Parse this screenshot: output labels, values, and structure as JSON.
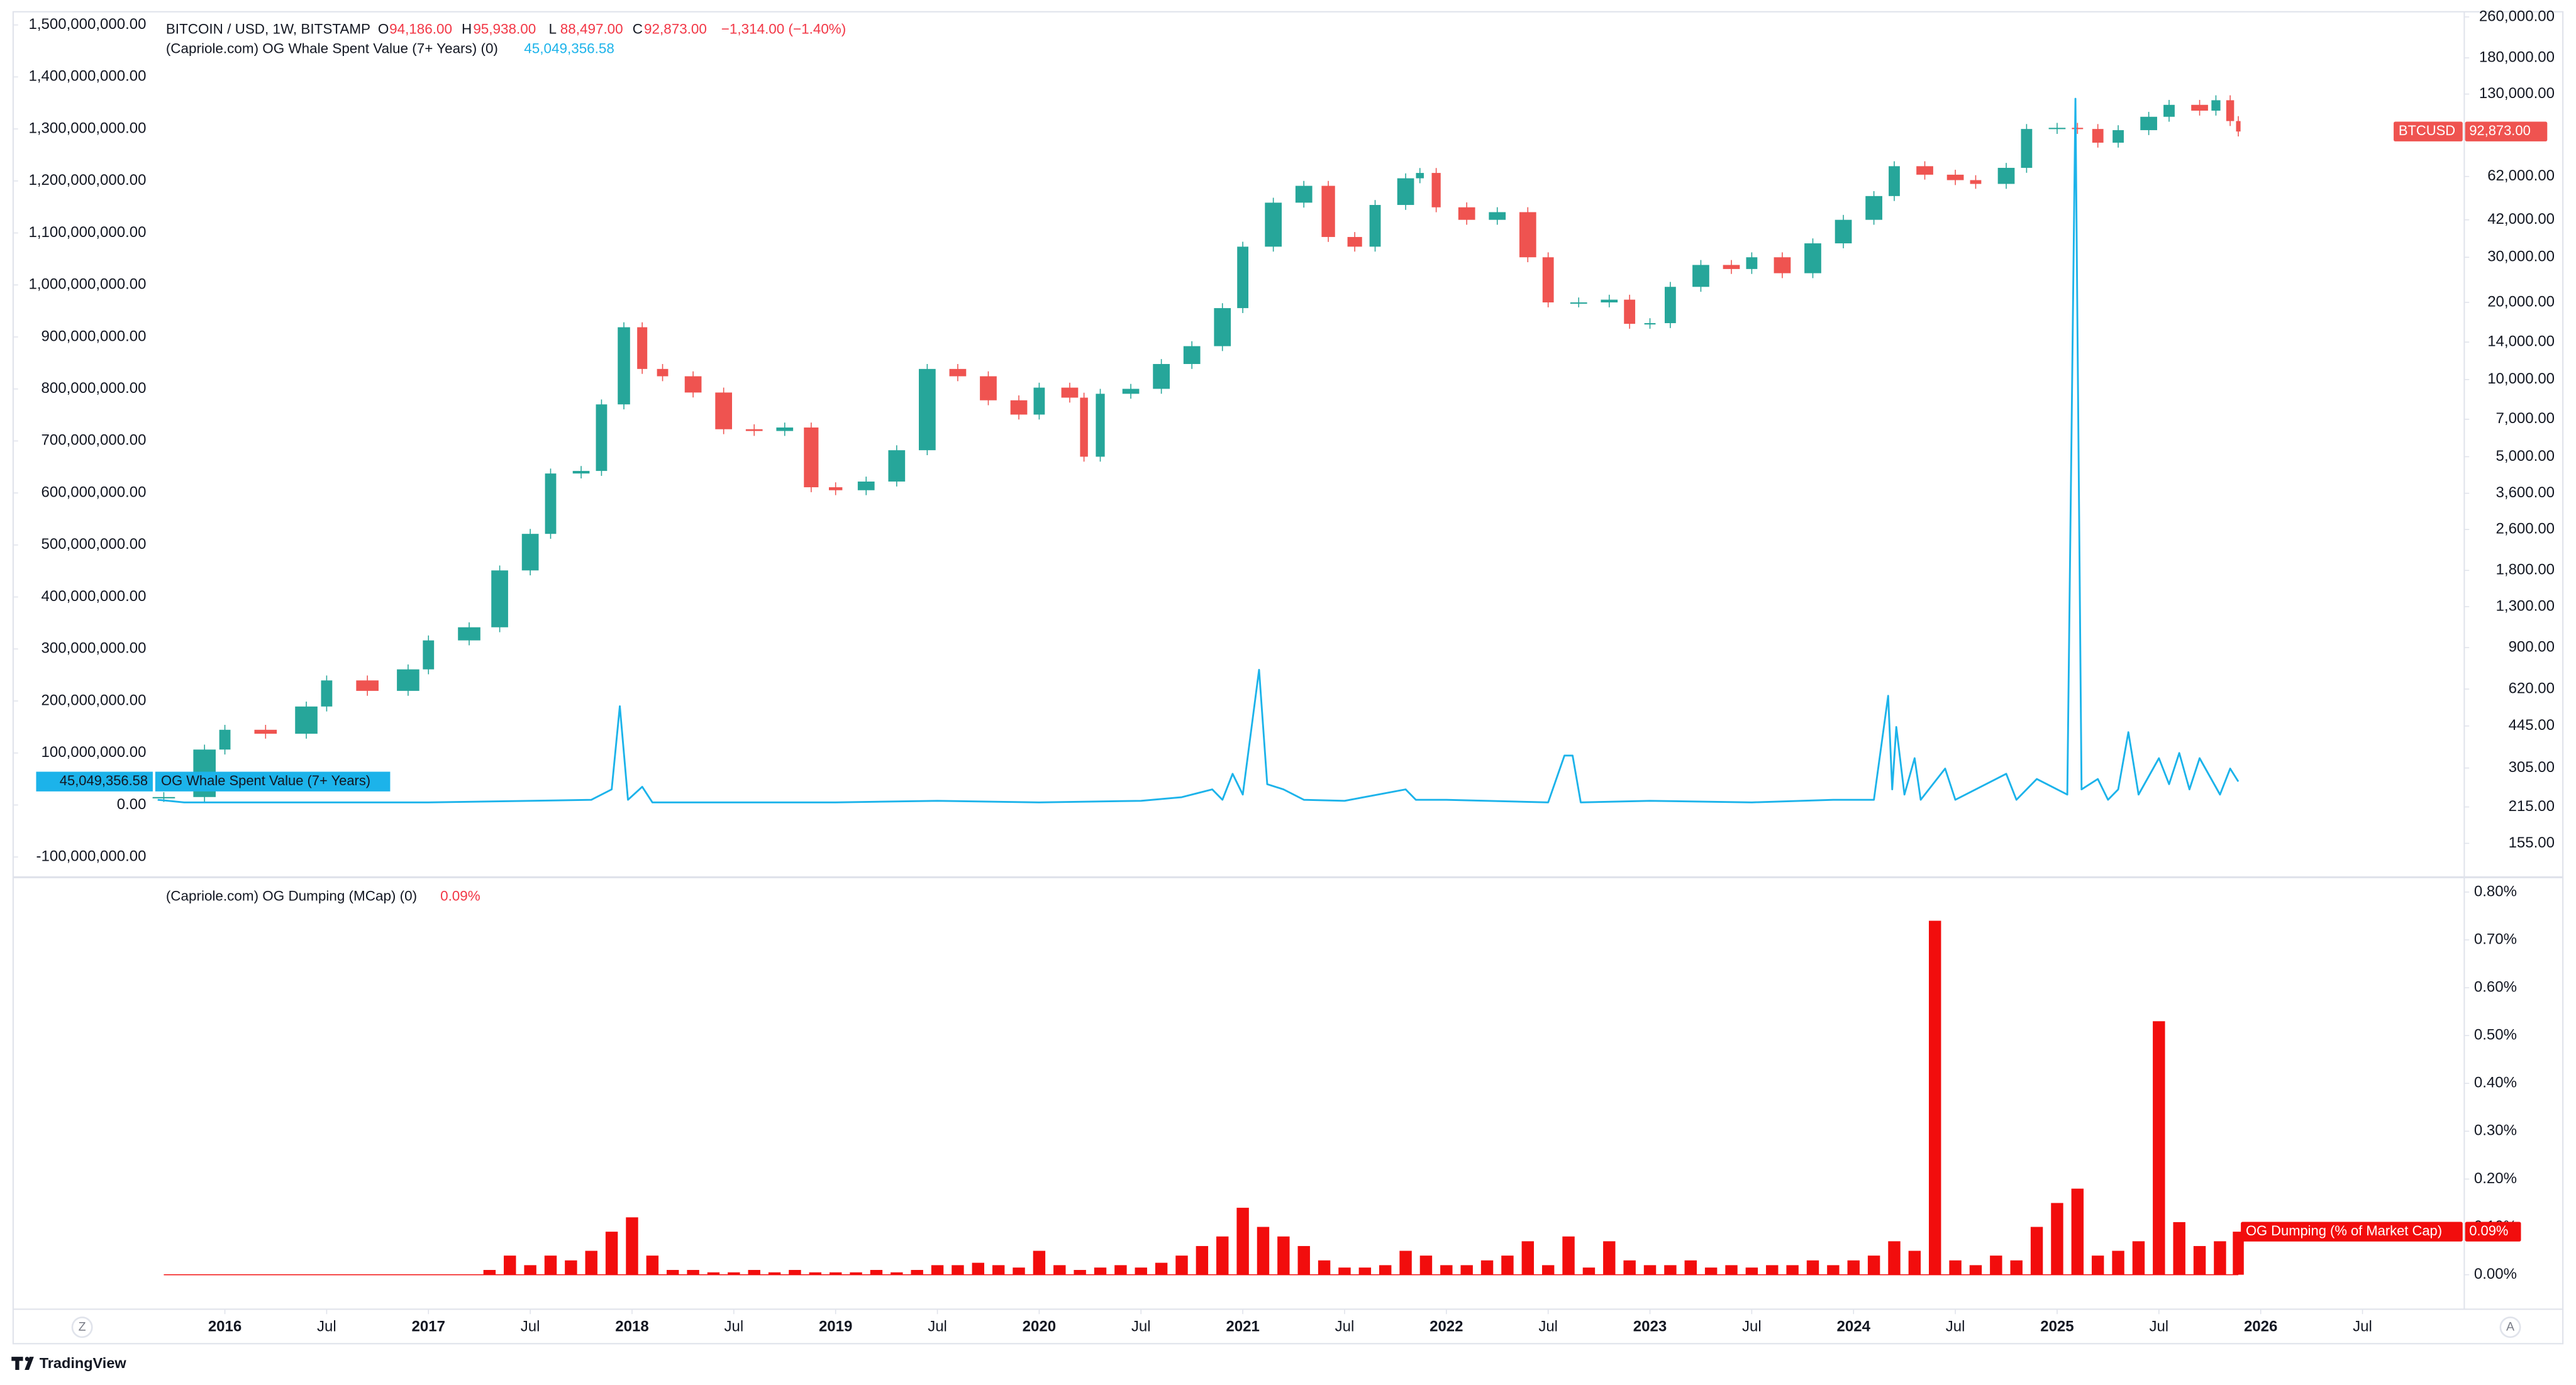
{
  "chart_data": [
    {
      "type": "candlestick",
      "title": "BITCOIN / USD, 1W, BITSTAMP",
      "ohlc": [
        [
          "O",
          "94,186.00"
        ],
        [
          "H",
          "95,938.00"
        ],
        [
          "L",
          "88,497.00"
        ],
        [
          "C",
          "92,873.00"
        ]
      ],
      "change": "−1,314.00 (−1.40%)",
      "xlim": [
        2014.96,
        2027.0
      ],
      "ylim": [
        -135800000,
        1525300000
      ],
      "yticks": [
        {
          "value": 1500000000,
          "label": "1,500,000,000.00"
        },
        {
          "value": 1400000000,
          "label": "1,400,000,000.00"
        },
        {
          "value": 1300000000,
          "label": "1,300,000,000.00"
        },
        {
          "value": 1200000000,
          "label": "1,200,000,000.00"
        },
        {
          "value": 1100000000,
          "label": "1,100,000,000.00"
        },
        {
          "value": 1000000000,
          "label": "1,000,000,000.00"
        },
        {
          "value": 900000000,
          "label": "900,000,000.00"
        },
        {
          "value": 800000000,
          "label": "800,000,000.00"
        },
        {
          "value": 700000000,
          "label": "700,000,000.00"
        },
        {
          "value": 600000000,
          "label": "600,000,000.00"
        },
        {
          "value": 500000000,
          "label": "500,000,000.00"
        },
        {
          "value": 400000000,
          "label": "400,000,000.00"
        },
        {
          "value": 300000000,
          "label": "300,000,000.00"
        },
        {
          "value": 200000000,
          "label": "200,000,000.00"
        },
        {
          "value": 100000000,
          "label": "100,000,000.00"
        },
        {
          "value": 0,
          "label": "0.00"
        },
        {
          "value": -100000000,
          "label": "-100,000,000.00"
        }
      ],
      "y2lim": [
        116,
        272300
      ],
      "y2scale": "log",
      "y2ticks": [
        {
          "value": 260000,
          "label": "260,000.00"
        },
        {
          "value": 180000,
          "label": "180,000.00"
        },
        {
          "value": 130000,
          "label": "130,000.00"
        },
        {
          "value": 62000,
          "label": "62,000.00"
        },
        {
          "value": 42000,
          "label": "42,000.00"
        },
        {
          "value": 30000,
          "label": "30,000.00"
        },
        {
          "value": 20000,
          "label": "20,000.00"
        },
        {
          "value": 14000,
          "label": "14,000.00"
        },
        {
          "value": 10000,
          "label": "10,000.00"
        },
        {
          "value": 7000,
          "label": "7,000.00"
        },
        {
          "value": 5000,
          "label": "5,000.00"
        },
        {
          "value": 3600,
          "label": "3,600.00"
        },
        {
          "value": 2600,
          "label": "2,600.00"
        },
        {
          "value": 1800,
          "label": "1,800.00"
        },
        {
          "value": 1300,
          "label": "1,300.00"
        },
        {
          "value": 900,
          "label": "900.00"
        },
        {
          "value": 620,
          "label": "620.00"
        },
        {
          "value": 445,
          "label": "445.00"
        },
        {
          "value": 305,
          "label": "305.00"
        },
        {
          "value": 215,
          "label": "215.00"
        },
        {
          "value": 155,
          "label": "155.00"
        }
      ],
      "grid": false,
      "series": [
        {
          "name": "BTCUSD",
          "axis": "y2",
          "up_color": "#26a69a",
          "down_color": "#ef5350",
          "last_label": "92,873.00",
          "x": [
            2015.7,
            2015.9,
            2016.0,
            2016.2,
            2016.4,
            2016.5,
            2016.7,
            2016.9,
            2017.0,
            2017.2,
            2017.35,
            2017.5,
            2017.6,
            2017.75,
            2017.85,
            2017.96,
            2018.05,
            2018.15,
            2018.3,
            2018.45,
            2018.6,
            2018.75,
            2018.88,
            2019.0,
            2019.15,
            2019.3,
            2019.45,
            2019.6,
            2019.75,
            2019.9,
            2020.0,
            2020.15,
            2020.22,
            2020.3,
            2020.45,
            2020.6,
            2020.75,
            2020.9,
            2021.0,
            2021.15,
            2021.3,
            2021.42,
            2021.55,
            2021.65,
            2021.8,
            2021.87,
            2021.95,
            2022.1,
            2022.25,
            2022.4,
            2022.5,
            2022.65,
            2022.8,
            2022.9,
            2023.0,
            2023.1,
            2023.25,
            2023.4,
            2023.5,
            2023.65,
            2023.8,
            2023.95,
            2024.1,
            2024.2,
            2024.35,
            2024.5,
            2024.6,
            2024.75,
            2024.85,
            2025.0,
            2025.1,
            2025.2,
            2025.3,
            2025.45,
            2025.55,
            2025.7,
            2025.78,
            2025.85,
            2025.89
          ],
          "values": [
            235,
            360,
            430,
            415,
            530,
            670,
            610,
            740,
            960,
            1080,
            1800,
            2500,
            4300,
            4400,
            8000,
            16000,
            11000,
            10300,
            8900,
            6400,
            6300,
            6500,
            3800,
            3700,
            4000,
            5300,
            11000,
            10300,
            8300,
            7300,
            9300,
            8500,
            5000,
            8800,
            9200,
            11500,
            13500,
            19000,
            33000,
            49000,
            57000,
            36000,
            33000,
            48000,
            61000,
            64000,
            47000,
            42000,
            45000,
            30000,
            20000,
            20000,
            20500,
            16500,
            16600,
            23000,
            28000,
            27000,
            30000,
            26000,
            34000,
            42000,
            52000,
            68000,
            63000,
            60000,
            58000,
            67000,
            95000,
            96000,
            95000,
            84000,
            94000,
            106000,
            118000,
            112000,
            123000,
            102000,
            92873
          ]
        },
        {
          "name": "OG Whale Spent Value (7+ Years)",
          "type": "line",
          "color": "#1cb3ea",
          "legend_title": "(Capriole.com) OG Whale Spent Value (7+ Years) (0)",
          "last_label": "45,049,356.58",
          "x": [
            2015.67,
            2015.8,
            2016.0,
            2016.5,
            2017.0,
            2017.5,
            2017.8,
            2017.9,
            2017.94,
            2017.98,
            2018.05,
            2018.1,
            2018.5,
            2019.0,
            2019.5,
            2020.0,
            2020.5,
            2020.7,
            2020.85,
            2020.9,
            2020.95,
            2021.0,
            2021.08,
            2021.12,
            2021.2,
            2021.3,
            2021.5,
            2021.8,
            2021.85,
            2022.0,
            2022.5,
            2022.58,
            2022.62,
            2022.66,
            2023.0,
            2023.5,
            2023.9,
            2024.1,
            2024.17,
            2024.19,
            2024.21,
            2024.25,
            2024.3,
            2024.33,
            2024.45,
            2024.5,
            2024.75,
            2024.8,
            2024.9,
            2024.95,
            2025.05,
            2025.09,
            2025.12,
            2025.2,
            2025.25,
            2025.3,
            2025.35,
            2025.4,
            2025.5,
            2025.55,
            2025.6,
            2025.65,
            2025.7,
            2025.8,
            2025.85,
            2025.89
          ],
          "values": [
            10000000,
            5000000,
            5000000,
            5000000,
            5000000,
            8000000,
            10000000,
            30000000,
            190000000,
            10000000,
            35000000,
            5000000,
            5000000,
            5000000,
            8000000,
            5000000,
            8000000,
            15000000,
            30000000,
            10000000,
            60000000,
            20000000,
            260000000,
            40000000,
            30000000,
            10000000,
            8000000,
            30000000,
            10000000,
            10000000,
            5000000,
            95000000,
            95000000,
            5000000,
            8000000,
            5000000,
            10000000,
            10000000,
            210000000,
            30000000,
            150000000,
            20000000,
            90000000,
            10000000,
            70000000,
            10000000,
            60000000,
            10000000,
            50000000,
            40000000,
            20000000,
            1358000000,
            30000000,
            50000000,
            10000000,
            30000000,
            140000000,
            20000000,
            90000000,
            40000000,
            100000000,
            30000000,
            90000000,
            20000000,
            70000000,
            45049356.58
          ]
        }
      ]
    },
    {
      "type": "bar",
      "title": "(Capriole.com) OG Dumping (MCap) (0)",
      "xlim": [
        2014.96,
        2027.0
      ],
      "xticks": [
        2016,
        {
          "value": 2016.5,
          "label": "Jul"
        },
        2017,
        {
          "value": 2017.5,
          "label": "Jul"
        },
        2018,
        {
          "value": 2018.5,
          "label": "Jul"
        },
        2019,
        {
          "value": 2019.5,
          "label": "Jul"
        },
        2020,
        {
          "value": 2020.5,
          "label": "Jul"
        },
        2021,
        {
          "value": 2021.5,
          "label": "Jul"
        },
        2022,
        {
          "value": 2022.5,
          "label": "Jul"
        },
        2023,
        {
          "value": 2023.5,
          "label": "Jul"
        },
        2024,
        {
          "value": 2024.5,
          "label": "Jul"
        },
        2025,
        {
          "value": 2025.5,
          "label": "Jul"
        },
        2026,
        {
          "value": 2026.5,
          "label": "Jul"
        }
      ],
      "ylim": [
        -0.072,
        0.8275
      ],
      "yticks": [
        {
          "value": 0.8,
          "label": "0.80%"
        },
        {
          "value": 0.7,
          "label": "0.70%"
        },
        {
          "value": 0.6,
          "label": "0.60%"
        },
        {
          "value": 0.5,
          "label": "0.50%"
        },
        {
          "value": 0.4,
          "label": "0.40%"
        },
        {
          "value": 0.3,
          "label": "0.30%"
        },
        {
          "value": 0.2,
          "label": "0.20%"
        },
        {
          "value": 0.1,
          "label": "0.10%"
        },
        {
          "value": 0,
          "label": "0.00%"
        }
      ],
      "grid": false,
      "series": [
        {
          "name": "OG Dumping (% of Market Cap)",
          "color": "#f20d0d",
          "last_label": "0.09%",
          "x": [
            2015.7,
            2015.8,
            2015.9,
            2016.0,
            2016.1,
            2016.2,
            2016.3,
            2016.4,
            2016.5,
            2016.6,
            2016.7,
            2016.8,
            2016.9,
            2017.0,
            2017.1,
            2017.2,
            2017.3,
            2017.4,
            2017.5,
            2017.6,
            2017.7,
            2017.8,
            2017.9,
            2018.0,
            2018.1,
            2018.2,
            2018.3,
            2018.4,
            2018.5,
            2018.6,
            2018.7,
            2018.8,
            2018.9,
            2019.0,
            2019.1,
            2019.2,
            2019.3,
            2019.4,
            2019.5,
            2019.6,
            2019.7,
            2019.8,
            2019.9,
            2020.0,
            2020.1,
            2020.2,
            2020.3,
            2020.4,
            2020.5,
            2020.6,
            2020.7,
            2020.8,
            2020.9,
            2021.0,
            2021.1,
            2021.2,
            2021.3,
            2021.4,
            2021.5,
            2021.6,
            2021.7,
            2021.8,
            2021.9,
            2022.0,
            2022.1,
            2022.2,
            2022.3,
            2022.4,
            2022.5,
            2022.6,
            2022.7,
            2022.8,
            2022.9,
            2023.0,
            2023.1,
            2023.2,
            2023.3,
            2023.4,
            2023.5,
            2023.6,
            2023.7,
            2023.8,
            2023.9,
            2024.0,
            2024.1,
            2024.2,
            2024.3,
            2024.4,
            2024.5,
            2024.6,
            2024.7,
            2024.8,
            2024.9,
            2025.0,
            2025.1,
            2025.2,
            2025.3,
            2025.4,
            2025.5,
            2025.6,
            2025.7,
            2025.8,
            2025.89
          ],
          "values": [
            0,
            0,
            0,
            0,
            0,
            0,
            0,
            0,
            0,
            0,
            0,
            0,
            0,
            0,
            0,
            0,
            0.01,
            0.04,
            0.02,
            0.04,
            0.03,
            0.05,
            0.09,
            0.12,
            0.04,
            0.01,
            0.01,
            0.005,
            0.005,
            0.01,
            0.005,
            0.01,
            0.005,
            0.005,
            0.005,
            0.01,
            0.005,
            0.01,
            0.02,
            0.02,
            0.025,
            0.02,
            0.015,
            0.05,
            0.02,
            0.01,
            0.015,
            0.02,
            0.015,
            0.025,
            0.04,
            0.06,
            0.08,
            0.14,
            0.1,
            0.08,
            0.06,
            0.03,
            0.015,
            0.015,
            0.02,
            0.05,
            0.04,
            0.02,
            0.02,
            0.03,
            0.04,
            0.07,
            0.02,
            0.08,
            0.015,
            0.07,
            0.03,
            0.02,
            0.02,
            0.03,
            0.015,
            0.02,
            0.015,
            0.02,
            0.02,
            0.03,
            0.02,
            0.03,
            0.04,
            0.07,
            0.05,
            0.74,
            0.03,
            0.02,
            0.04,
            0.03,
            0.1,
            0.15,
            0.18,
            0.04,
            0.05,
            0.07,
            0.53,
            0.11,
            0.06,
            0.07,
            0.09
          ]
        }
      ]
    }
  ],
  "ui": {
    "left_button": "Z",
    "right_button": "A",
    "brand": "TradingView"
  }
}
